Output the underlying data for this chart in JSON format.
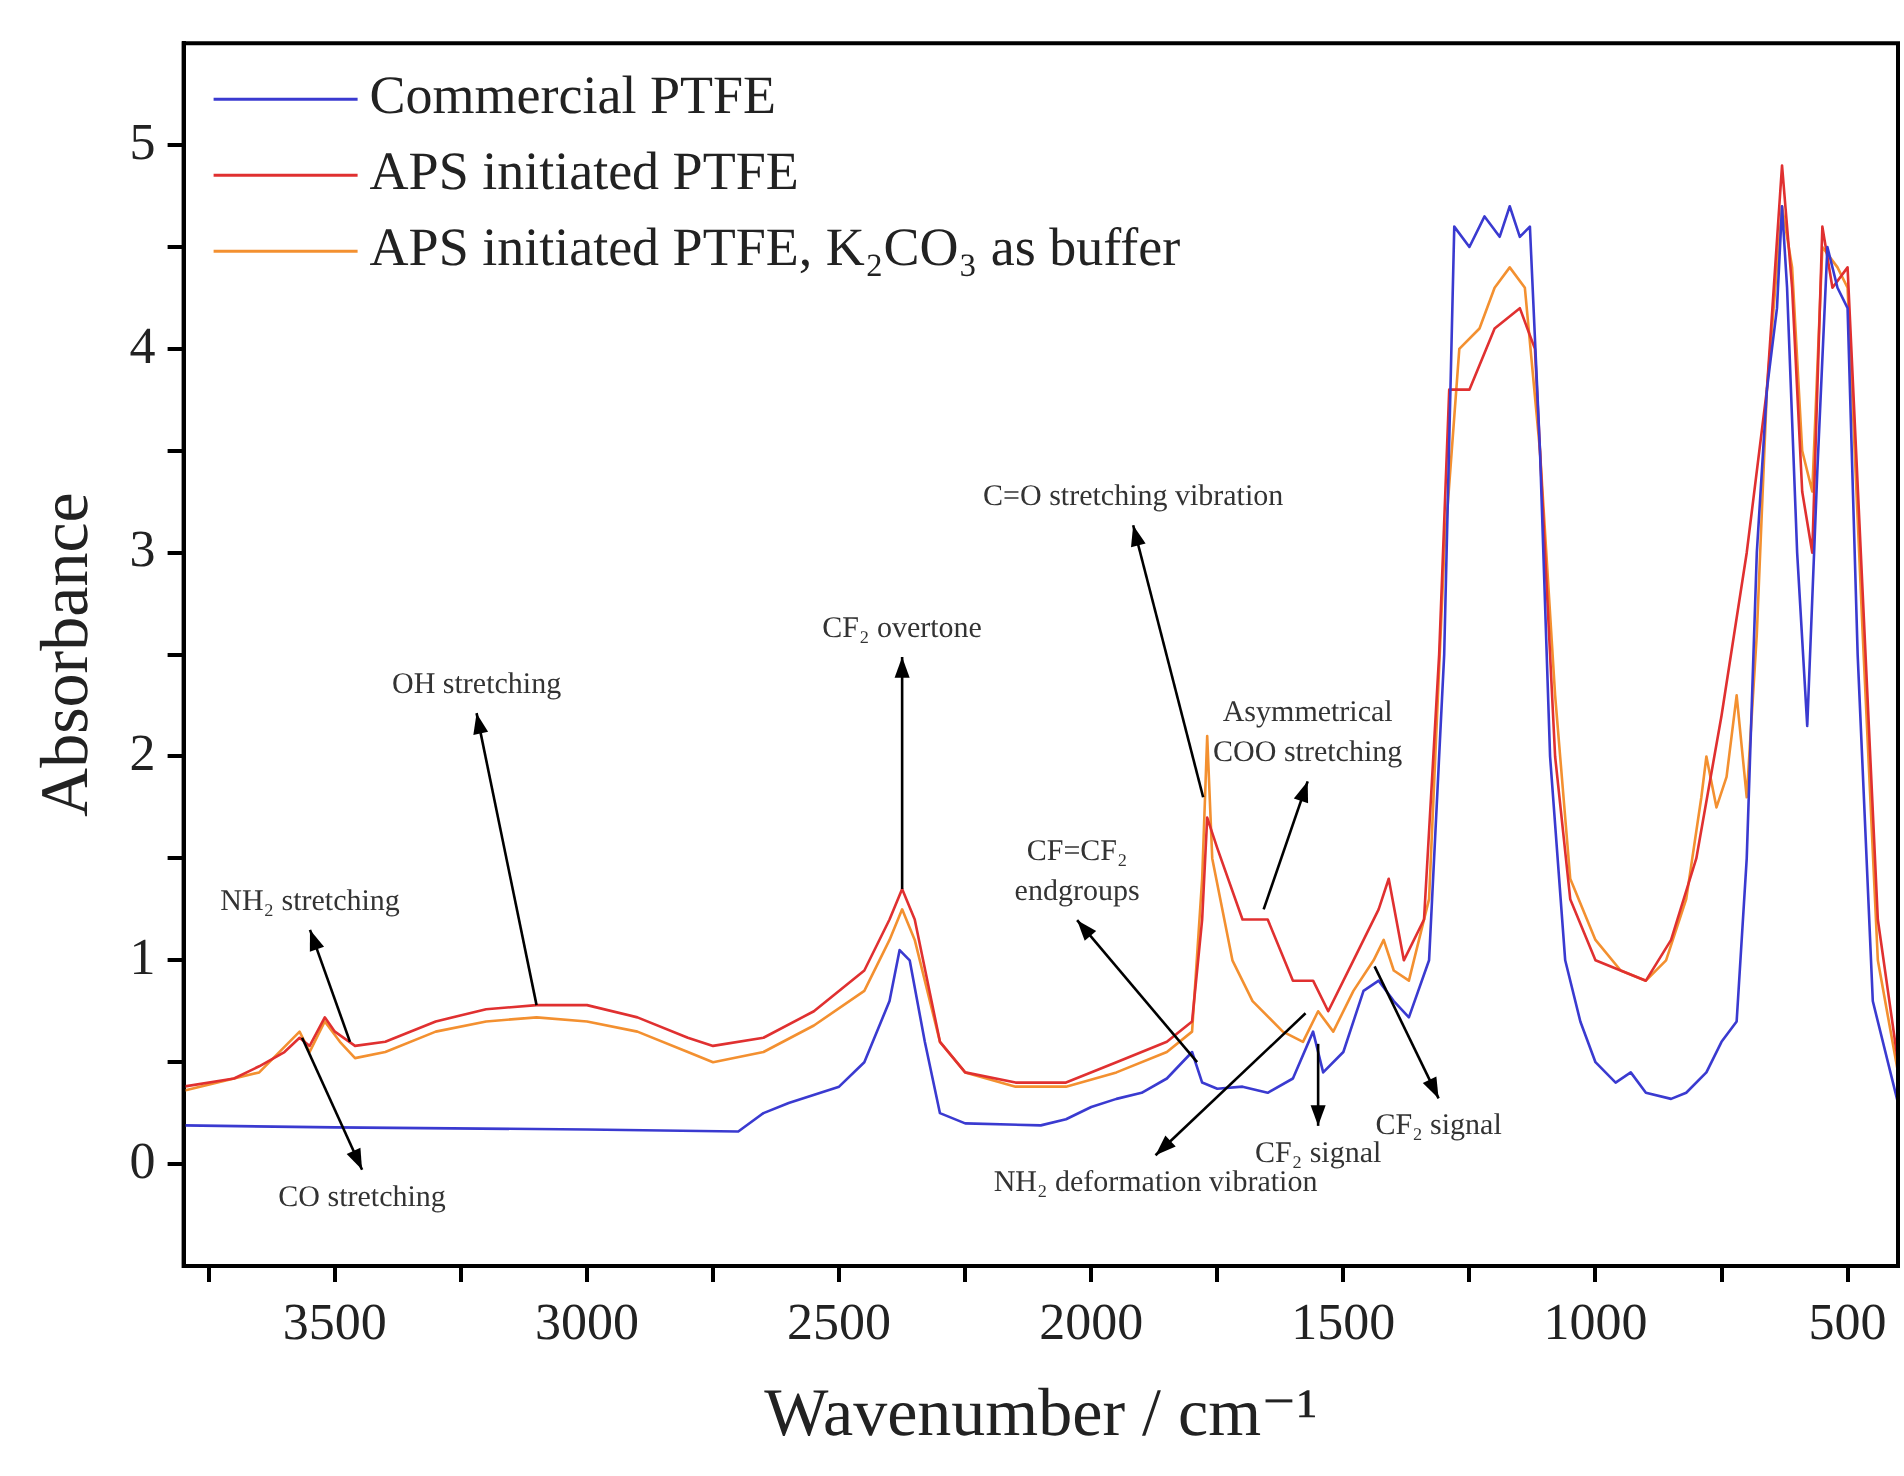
{
  "chart_data": {
    "type": "line",
    "xlabel": "Wavenumber / cm⁻¹",
    "ylabel": "Absorbance",
    "xlim": [
      3800,
      400
    ],
    "ylim": [
      -0.5,
      5.5
    ],
    "xticks": [
      {
        "value": 3750,
        "label": null
      },
      3500,
      {
        "value": 3250,
        "label": null
      },
      3000,
      {
        "value": 2750,
        "label": null
      },
      2500,
      {
        "value": 2250,
        "label": null
      },
      2000,
      {
        "value": 1750,
        "label": null
      },
      1500,
      {
        "value": 1250,
        "label": null
      },
      1000,
      {
        "value": 750,
        "label": null
      },
      500
    ],
    "yticks": [
      0,
      {
        "value": 0.5,
        "label": null
      },
      1,
      {
        "value": 1.5,
        "label": null
      },
      2,
      {
        "value": 2.5,
        "label": null
      },
      3,
      {
        "value": 3.5,
        "label": null
      },
      4,
      {
        "value": 4.5,
        "label": null
      },
      5
    ],
    "grid": false,
    "legend": "top left",
    "marker": "none",
    "line_style": "solid",
    "series": [
      {
        "name": "Commercial PTFE",
        "color": "#3a3ad0",
        "x": [
          3800,
          3500,
          3000,
          2700,
          2650,
          2600,
          2500,
          2450,
          2400,
          2380,
          2360,
          2330,
          2300,
          2250,
          2100,
          2050,
          2000,
          1950,
          1900,
          1850,
          1800,
          1780,
          1750,
          1700,
          1650,
          1600,
          1560,
          1540,
          1500,
          1460,
          1430,
          1400,
          1370,
          1330,
          1300,
          1280,
          1250,
          1220,
          1190,
          1170,
          1150,
          1130,
          1110,
          1090,
          1060,
          1030,
          1000,
          960,
          930,
          900,
          850,
          820,
          780,
          750,
          720,
          700,
          680,
          660,
          640,
          630,
          620,
          600,
          580,
          560,
          540,
          520,
          500,
          480,
          450,
          400
        ],
        "values": [
          0.19,
          0.18,
          0.17,
          0.16,
          0.25,
          0.3,
          0.38,
          0.5,
          0.8,
          1.05,
          1.0,
          0.6,
          0.25,
          0.2,
          0.19,
          0.22,
          0.28,
          0.32,
          0.35,
          0.42,
          0.55,
          0.4,
          0.37,
          0.38,
          0.35,
          0.42,
          0.65,
          0.45,
          0.55,
          0.85,
          0.9,
          0.8,
          0.72,
          1.0,
          2.5,
          4.6,
          4.5,
          4.65,
          4.55,
          4.7,
          4.55,
          4.6,
          3.5,
          2.0,
          1.0,
          0.7,
          0.5,
          0.4,
          0.45,
          0.35,
          0.32,
          0.35,
          0.45,
          0.6,
          0.7,
          1.5,
          3.0,
          3.8,
          4.2,
          4.7,
          4.3,
          3.0,
          2.15,
          3.4,
          4.5,
          4.3,
          4.2,
          2.5,
          0.8,
          0.3
        ]
      },
      {
        "name": "APS initiated PTFE",
        "color": "#e03030",
        "x": [
          3800,
          3700,
          3650,
          3600,
          3570,
          3550,
          3520,
          3500,
          3460,
          3400,
          3300,
          3200,
          3100,
          3000,
          2900,
          2800,
          2750,
          2650,
          2550,
          2450,
          2400,
          2375,
          2350,
          2300,
          2250,
          2150,
          2050,
          1950,
          1850,
          1800,
          1780,
          1770,
          1750,
          1700,
          1650,
          1600,
          1560,
          1530,
          1480,
          1430,
          1410,
          1380,
          1340,
          1310,
          1290,
          1250,
          1200,
          1150,
          1120,
          1100,
          1080,
          1050,
          1000,
          950,
          900,
          850,
          800,
          750,
          700,
          660,
          630,
          610,
          590,
          570,
          550,
          530,
          500,
          470,
          440,
          400
        ],
        "values": [
          0.38,
          0.42,
          0.48,
          0.55,
          0.62,
          0.58,
          0.72,
          0.65,
          0.58,
          0.6,
          0.7,
          0.76,
          0.78,
          0.78,
          0.72,
          0.62,
          0.58,
          0.62,
          0.75,
          0.95,
          1.2,
          1.35,
          1.2,
          0.6,
          0.45,
          0.4,
          0.4,
          0.5,
          0.6,
          0.7,
          1.2,
          1.7,
          1.55,
          1.2,
          1.2,
          0.9,
          0.9,
          0.75,
          1.0,
          1.25,
          1.4,
          1.0,
          1.2,
          2.5,
          3.8,
          3.8,
          4.1,
          4.2,
          4.0,
          3.0,
          2.0,
          1.3,
          1.0,
          0.95,
          0.9,
          1.1,
          1.5,
          2.2,
          3.0,
          3.8,
          4.9,
          4.3,
          3.3,
          3.0,
          4.6,
          4.3,
          4.4,
          2.8,
          1.2,
          0.5
        ]
      },
      {
        "name": "APS initiated PTFE, K₂CO₃ as buffer",
        "color": "#f39030",
        "x": [
          3800,
          3650,
          3570,
          3550,
          3520,
          3490,
          3460,
          3400,
          3300,
          3200,
          3100,
          3000,
          2900,
          2800,
          2750,
          2650,
          2550,
          2450,
          2400,
          2375,
          2350,
          2300,
          2250,
          2150,
          2050,
          1950,
          1850,
          1800,
          1780,
          1770,
          1760,
          1720,
          1680,
          1620,
          1580,
          1550,
          1520,
          1480,
          1440,
          1420,
          1400,
          1370,
          1330,
          1300,
          1270,
          1230,
          1200,
          1170,
          1140,
          1110,
          1080,
          1050,
          1000,
          950,
          900,
          860,
          820,
          790,
          780,
          760,
          740,
          720,
          700,
          680,
          660,
          630,
          610,
          590,
          570,
          550,
          520,
          500,
          470,
          440,
          400
        ],
        "values": [
          0.36,
          0.45,
          0.65,
          0.55,
          0.7,
          0.6,
          0.52,
          0.55,
          0.65,
          0.7,
          0.72,
          0.7,
          0.65,
          0.55,
          0.5,
          0.55,
          0.68,
          0.85,
          1.1,
          1.25,
          1.1,
          0.6,
          0.45,
          0.38,
          0.38,
          0.45,
          0.55,
          0.65,
          1.4,
          2.1,
          1.5,
          1.0,
          0.8,
          0.65,
          0.6,
          0.75,
          0.65,
          0.85,
          1.0,
          1.1,
          0.95,
          0.9,
          1.3,
          3.0,
          4.0,
          4.1,
          4.3,
          4.4,
          4.3,
          3.5,
          2.3,
          1.4,
          1.1,
          0.95,
          0.9,
          1.0,
          1.3,
          1.8,
          2.0,
          1.75,
          1.9,
          2.3,
          1.8,
          2.6,
          3.8,
          4.7,
          4.4,
          3.5,
          3.3,
          4.5,
          4.4,
          4.3,
          2.6,
          1.0,
          0.45
        ]
      }
    ],
    "annotations": [
      {
        "text": "NH₂ stretching",
        "x": 3470,
        "y": 0.6
      },
      {
        "text": "CO stretching",
        "x": 3565,
        "y": 0.62
      },
      {
        "text": "OH stretching",
        "x": 3100,
        "y": 0.78
      },
      {
        "text": "CF₂ overtone",
        "x": 2375,
        "y": 1.35
      },
      {
        "text": "CF=CF₂\nendgroups",
        "x": 1790,
        "y": 0.5
      },
      {
        "text": "C=O stretching vibration",
        "x": 1778,
        "y": 1.8
      },
      {
        "text": "Asymmetrical\nCOO stretching",
        "x": 1658,
        "y": 1.25
      },
      {
        "text": "NH₂ deformation vibration",
        "x": 1575,
        "y": 0.74
      },
      {
        "text": "CF₂ signal",
        "x": 1550,
        "y": 0.59
      },
      {
        "text": "CF₂ signal",
        "x": 1438,
        "y": 0.97
      }
    ]
  }
}
